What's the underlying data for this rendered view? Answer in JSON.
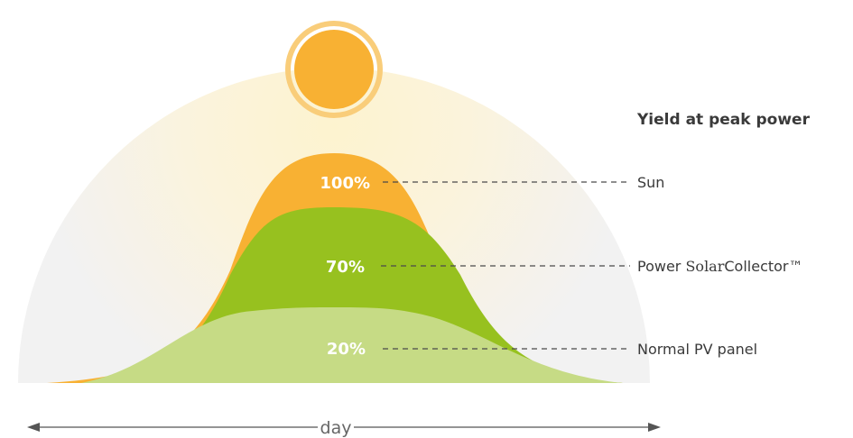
{
  "title": "Yield at peak power",
  "levels": [
    {
      "percent": "100%",
      "name": "Sun",
      "value": 100,
      "color": "#f8b133"
    },
    {
      "percent": "70%",
      "name_prefix": "Power ",
      "name_brand": "Solar",
      "name_suffix": "Collector™",
      "value": 70,
      "color": "#97c11f"
    },
    {
      "percent": "20%",
      "name": "Normal PV panel",
      "value": 20,
      "color": "#c6db85"
    }
  ],
  "axis": {
    "label": "day"
  },
  "colors": {
    "sun": "#f8b133",
    "sun_ring": "#f9cd7a",
    "glow": "#fdf6dc",
    "backdrop": "#f2f2f2"
  }
}
